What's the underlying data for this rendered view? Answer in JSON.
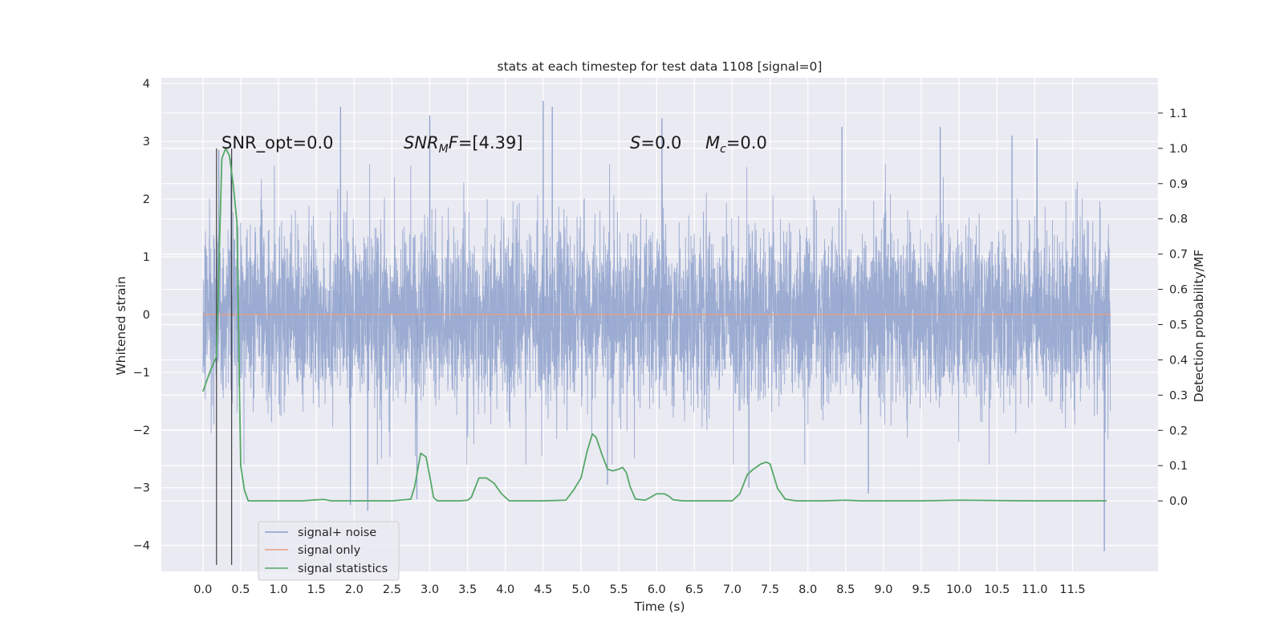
{
  "chart_data": {
    "type": "line",
    "title": "stats at each timestep for test data 1108 [signal=0]",
    "xlabel": "Time (s)",
    "ylabel": "Whitened strain",
    "ylabel_right": "Detection probability/MF",
    "xlim": [
      -0.55,
      12.63
    ],
    "ylim": [
      -4.45,
      4.1
    ],
    "ylim_right": [
      -0.2,
      1.2
    ],
    "x_ticks": [
      "0.0",
      "0.5",
      "1.0",
      "1.5",
      "2.0",
      "2.5",
      "3.0",
      "3.5",
      "4.0",
      "4.5",
      "5.0",
      "5.5",
      "6.0",
      "6.5",
      "7.0",
      "7.5",
      "8.0",
      "8.5",
      "9.0",
      "9.5",
      "10.0",
      "10.5",
      "11.0",
      "11.5"
    ],
    "y_ticks": [
      "4",
      "3",
      "2",
      "1",
      "0",
      "−1",
      "−2",
      "−3",
      "−4"
    ],
    "y_ticks_right": [
      "1.1",
      "1.0",
      "0.9",
      "0.8",
      "0.7",
      "0.6",
      "0.5",
      "0.4",
      "0.3",
      "0.2",
      "0.1",
      "0.0"
    ],
    "colors": {
      "noise": "#8da0cb",
      "signal": "#e8a07f",
      "stats": "#55a868",
      "vline": "#404040",
      "background": "#eaeaf2",
      "grid": "#ffffff"
    },
    "annotations": {
      "snr_opt": "SNR_opt=0.0",
      "snr_mf_base": "SNR",
      "snr_mf_sub": "M",
      "snr_mf_mid": "F",
      "snr_mf_val": "=[4.39]",
      "s_sym": "S",
      "s_val": "=0.0",
      "mc_sym": "M",
      "mc_sub": "c",
      "mc_val": "=0.0"
    },
    "legend": {
      "position": "lower-left",
      "items": [
        "signal+ noise",
        "signal only",
        "signal statistics"
      ]
    },
    "series": [
      {
        "name": "signal+ noise",
        "kind": "noise",
        "x_range": [
          0.0,
          12.0
        ],
        "samples": 6144,
        "core_range": [
          -1.35,
          1.35
        ],
        "typical_extremes": [
          -2.2,
          2.4
        ],
        "spikes": [
          [
            0.21,
            2.85
          ],
          [
            0.37,
            2.7
          ],
          [
            1.82,
            3.6
          ],
          [
            2.18,
            -3.4
          ],
          [
            1.95,
            -3.3
          ],
          [
            2.83,
            -3.2
          ],
          [
            3.0,
            3.45
          ],
          [
            4.5,
            3.7
          ],
          [
            4.62,
            3.6
          ],
          [
            5.35,
            -2.95
          ],
          [
            6.07,
            3.4
          ],
          [
            8.45,
            3.25
          ],
          [
            8.8,
            -3.1
          ],
          [
            9.75,
            3.25
          ],
          [
            10.7,
            3.1
          ],
          [
            11.03,
            3.05
          ],
          [
            11.92,
            -4.1
          ],
          [
            7.22,
            -3.0
          ]
        ]
      },
      {
        "name": "signal only",
        "kind": "flat",
        "x": [
          0.0,
          12.0
        ],
        "y": [
          0.0,
          0.0
        ]
      },
      {
        "name": "signal statistics",
        "kind": "stats",
        "x": [
          0.0,
          0.1,
          0.18,
          0.25,
          0.3,
          0.35,
          0.4,
          0.45,
          0.5,
          0.55,
          0.6,
          0.65,
          0.75,
          1.0,
          1.3,
          1.5,
          1.6,
          1.7,
          1.8,
          2.0,
          2.5,
          2.75,
          2.8,
          2.88,
          2.95,
          3.0,
          3.05,
          3.1,
          3.2,
          3.4,
          3.5,
          3.55,
          3.65,
          3.75,
          3.85,
          3.95,
          4.05,
          4.2,
          4.5,
          4.8,
          4.9,
          5.0,
          5.08,
          5.15,
          5.2,
          5.28,
          5.35,
          5.42,
          5.5,
          5.55,
          5.6,
          5.65,
          5.72,
          5.85,
          6.0,
          6.1,
          6.15,
          6.22,
          6.35,
          6.6,
          7.0,
          7.1,
          7.2,
          7.28,
          7.38,
          7.45,
          7.5,
          7.6,
          7.7,
          7.85,
          8.2,
          8.5,
          8.7,
          9.5,
          10.0,
          11.0,
          11.95
        ],
        "y": [
          0.31,
          0.37,
          0.41,
          0.97,
          1.0,
          0.98,
          0.9,
          0.79,
          0.1,
          0.03,
          0.0,
          0.0,
          0.0,
          0.0,
          0.0,
          0.003,
          0.004,
          0.0,
          0.0,
          0.0,
          0.0,
          0.005,
          0.04,
          0.135,
          0.125,
          0.07,
          0.01,
          0.0,
          0.0,
          0.0,
          0.002,
          0.01,
          0.065,
          0.065,
          0.05,
          0.02,
          0.0,
          0.0,
          0.0,
          0.002,
          0.03,
          0.065,
          0.14,
          0.19,
          0.18,
          0.13,
          0.09,
          0.085,
          0.09,
          0.095,
          0.08,
          0.04,
          0.005,
          0.002,
          0.02,
          0.02,
          0.015,
          0.003,
          0.0,
          0.0,
          0.0,
          0.02,
          0.075,
          0.09,
          0.105,
          0.11,
          0.105,
          0.035,
          0.005,
          0.0,
          0.0,
          0.002,
          0.0,
          0.0,
          0.002,
          0.0,
          0.0
        ]
      }
    ],
    "vlines": [
      0.18,
      0.38
    ],
    "vline_range": [
      -0.2,
      1.0
    ]
  }
}
